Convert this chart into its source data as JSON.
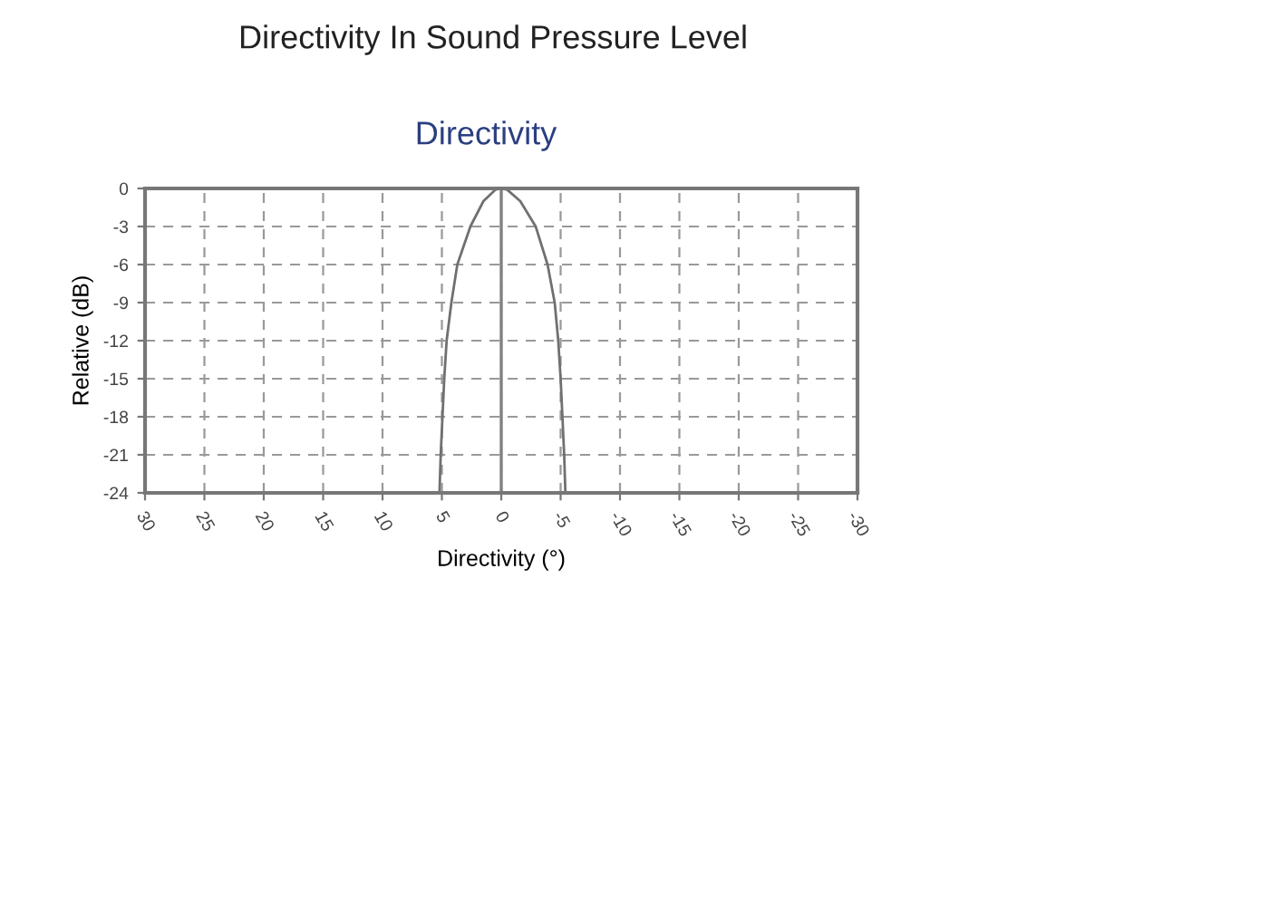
{
  "chart_data": {
    "type": "line",
    "title": "Directivity In Sound Pressure Level",
    "subtitle": "Directivity",
    "xlabel": "Directivity (°)",
    "ylabel": "Relative (dB)",
    "x": [
      5.2,
      5.1,
      4.95,
      4.8,
      4.6,
      4.2,
      3.7,
      2.6,
      1.5,
      0.5,
      0,
      -0.5,
      -1.6,
      -2.9,
      -3.9,
      -4.5,
      -4.8,
      -5.0,
      -5.15,
      -5.3,
      -5.4
    ],
    "series": [
      {
        "color": "#707070",
        "values": [
          -24,
          -21,
          -18,
          -15,
          -12,
          -9,
          -6,
          -3,
          -1,
          -0.1,
          0,
          -0.1,
          -1,
          -3,
          -6,
          -9,
          -12,
          -15,
          -18,
          -21,
          -24
        ]
      }
    ],
    "xlim": [
      30,
      -30
    ],
    "xticks": [
      30,
      25,
      20,
      15,
      10,
      5,
      0,
      -5,
      -10,
      -15,
      -20,
      -25,
      -30
    ],
    "ylim": [
      -24,
      0
    ],
    "yticks": [
      0,
      -3,
      -6,
      -9,
      -12,
      -15,
      -18,
      -21,
      -24
    ],
    "ref_lines": [
      {
        "axis": "x",
        "value": 0,
        "color": "#808080",
        "line_style": "solid"
      }
    ],
    "grid": true,
    "line_style": "solid",
    "marker": "none"
  }
}
